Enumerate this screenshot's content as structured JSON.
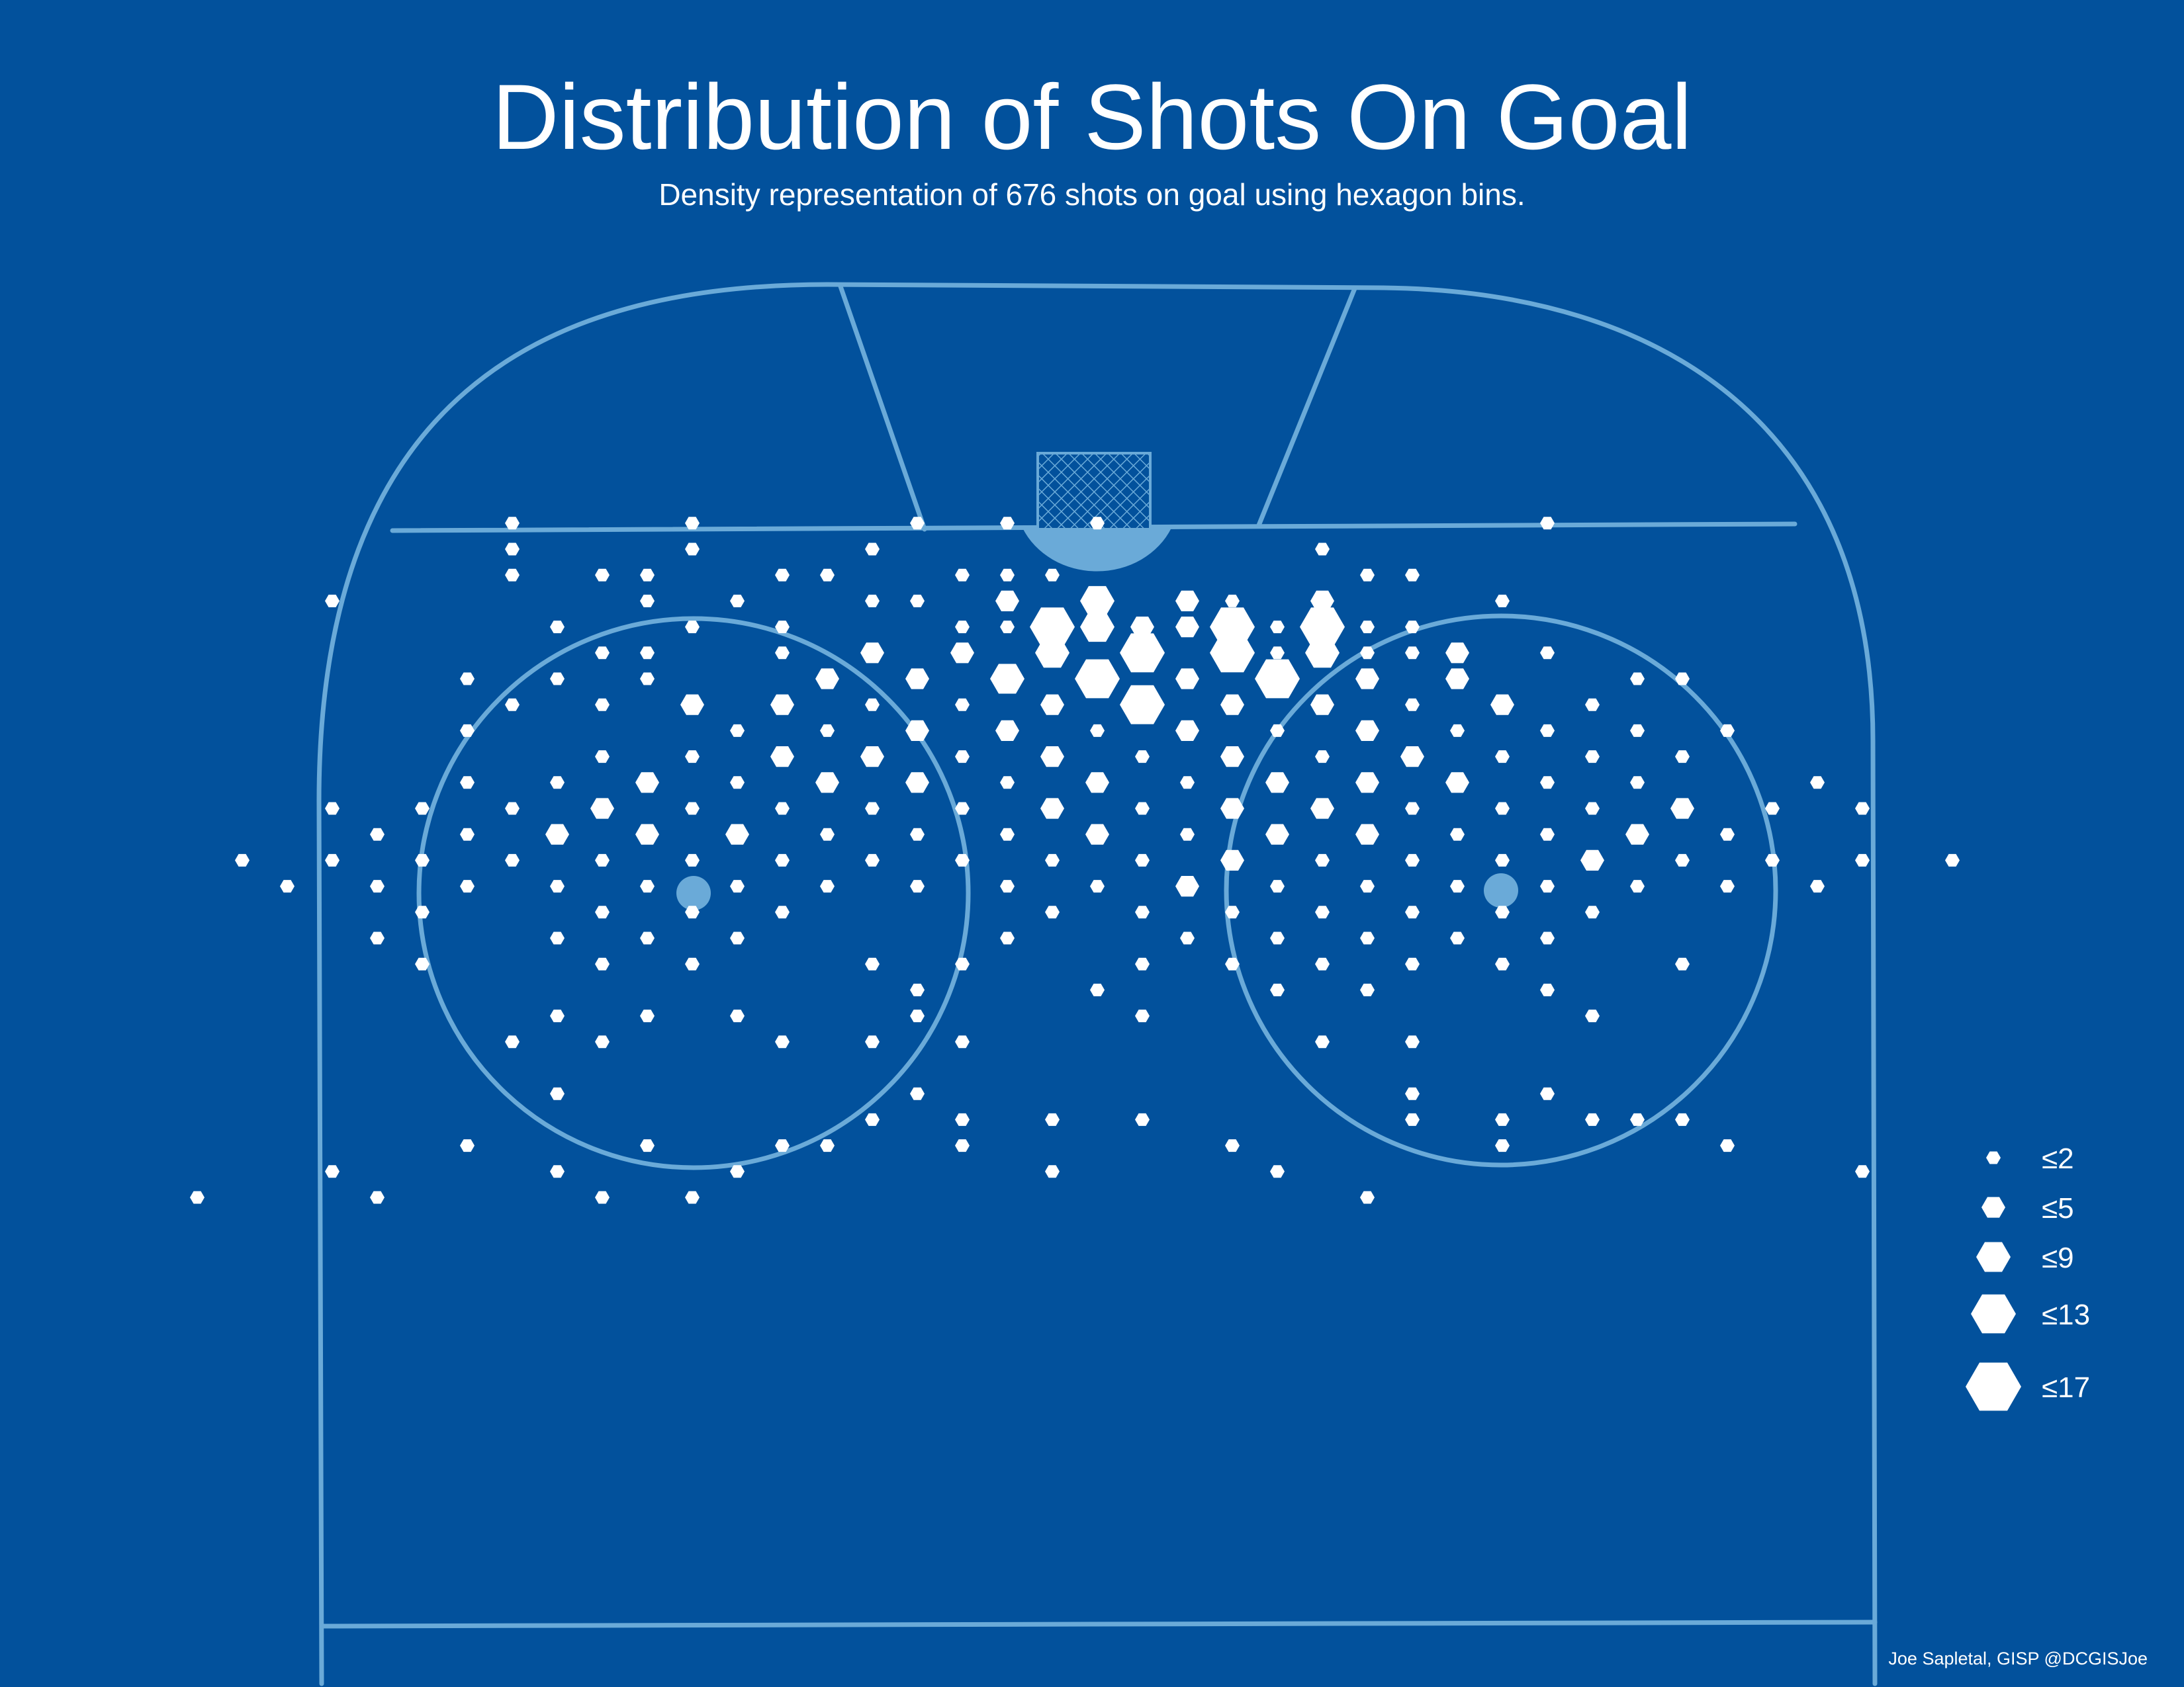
{
  "colors": {
    "background": "#02519c",
    "rink_lines": "#6aaad8",
    "hexagon": "#ffffff",
    "text": "#ffffff"
  },
  "title": "Distribution of Shots On Goal",
  "subtitle": "Density representation of 676 shots on goal using hexagon bins.",
  "credit": "Joe Sapletal, GISP @DCGISJoe",
  "chart_data": {
    "type": "heatmap",
    "title": "Distribution of Shots On Goal",
    "subtitle": "Density representation of 676 shots on goal using hexagon bins.",
    "total_shots": 676,
    "bin_shape": "hexagon",
    "encoding": "hexagon size = shots in bin (class upper bound)",
    "legend": {
      "placement": "right",
      "classes": [
        {
          "label": "≤2",
          "max": 2
        },
        {
          "label": "≤5",
          "max": 5
        },
        {
          "label": "≤9",
          "max": 9
        },
        {
          "label": "≤13",
          "max": 13
        },
        {
          "label": "≤17",
          "max": 17
        }
      ]
    },
    "bins_note": "each bin: [column, row, class max]; columns step half a hex width, rows step one hex row (offset grid), origin at the goal line near the net",
    "bins": [
      [
        -13,
        -1,
        2
      ],
      [
        -9,
        -1,
        2
      ],
      [
        -4,
        -1,
        2
      ],
      [
        -2,
        -1,
        2
      ],
      [
        0,
        -1,
        2
      ],
      [
        10,
        -1,
        2
      ],
      [
        -13,
        0,
        2
      ],
      [
        -9,
        0,
        2
      ],
      [
        -13,
        1,
        2
      ],
      [
        -11,
        1,
        2
      ],
      [
        -10,
        1,
        2
      ],
      [
        -7,
        1,
        2
      ],
      [
        -1,
        1,
        2
      ],
      [
        -5,
        0,
        2
      ],
      [
        -6,
        1,
        2
      ],
      [
        -5,
        2,
        2
      ],
      [
        -4,
        2,
        2
      ],
      [
        -2,
        2,
        5
      ],
      [
        0,
        2,
        9
      ],
      [
        2,
        2,
        5
      ],
      [
        3,
        2,
        2
      ],
      [
        6,
        1,
        2
      ],
      [
        5,
        0,
        2
      ],
      [
        7,
        1,
        2
      ],
      [
        9,
        2,
        2
      ],
      [
        -3,
        1,
        2
      ],
      [
        -2,
        1,
        2
      ],
      [
        -17,
        2,
        2
      ],
      [
        -8,
        2,
        2
      ],
      [
        -10,
        2,
        2
      ],
      [
        -12,
        3,
        2
      ],
      [
        -9,
        3,
        2
      ],
      [
        -7,
        3,
        2
      ],
      [
        -3,
        3,
        2
      ],
      [
        -2,
        3,
        2
      ],
      [
        0,
        3,
        9
      ],
      [
        2,
        3,
        5
      ],
      [
        4,
        3,
        2
      ],
      [
        6,
        3,
        2
      ],
      [
        7,
        3,
        2
      ],
      [
        -11,
        4,
        2
      ],
      [
        -10,
        4,
        2
      ],
      [
        -7,
        4,
        2
      ],
      [
        -5,
        4,
        5
      ],
      [
        -3,
        4,
        5
      ],
      [
        -1,
        4,
        9
      ],
      [
        1,
        4,
        13
      ],
      [
        3,
        4,
        13
      ],
      [
        5,
        4,
        9
      ],
      [
        7,
        4,
        2
      ],
      [
        -1,
        3,
        13
      ],
      [
        1,
        3,
        5
      ],
      [
        3,
        3,
        13
      ],
      [
        5,
        3,
        13
      ],
      [
        4,
        4,
        2
      ],
      [
        5,
        2,
        5
      ],
      [
        8,
        4,
        5
      ],
      [
        6,
        4,
        2
      ],
      [
        10,
        4,
        2
      ],
      [
        -14,
        5,
        2
      ],
      [
        -12,
        5,
        2
      ],
      [
        -10,
        5,
        2
      ],
      [
        -6,
        5,
        5
      ],
      [
        -4,
        5,
        5
      ],
      [
        -2,
        5,
        9
      ],
      [
        0,
        5,
        13
      ],
      [
        2,
        5,
        5
      ],
      [
        4,
        5,
        13
      ],
      [
        6,
        5,
        5
      ],
      [
        8,
        5,
        5
      ],
      [
        12,
        5,
        2
      ],
      [
        13,
        5,
        2
      ],
      [
        -13,
        6,
        2
      ],
      [
        -11,
        6,
        2
      ],
      [
        -9,
        6,
        5
      ],
      [
        -7,
        6,
        5
      ],
      [
        -5,
        6,
        2
      ],
      [
        -3,
        6,
        2
      ],
      [
        -1,
        6,
        5
      ],
      [
        1,
        6,
        13
      ],
      [
        3,
        6,
        5
      ],
      [
        5,
        6,
        5
      ],
      [
        7,
        6,
        2
      ],
      [
        9,
        6,
        5
      ],
      [
        11,
        6,
        2
      ],
      [
        -14,
        7,
        2
      ],
      [
        -8,
        7,
        2
      ],
      [
        -6,
        7,
        2
      ],
      [
        -4,
        7,
        5
      ],
      [
        -2,
        7,
        5
      ],
      [
        0,
        7,
        2
      ],
      [
        2,
        7,
        5
      ],
      [
        4,
        7,
        2
      ],
      [
        6,
        7,
        5
      ],
      [
        8,
        7,
        2
      ],
      [
        10,
        7,
        2
      ],
      [
        12,
        7,
        2
      ],
      [
        14,
        7,
        2
      ],
      [
        -11,
        8,
        2
      ],
      [
        -9,
        8,
        2
      ],
      [
        -7,
        8,
        5
      ],
      [
        -5,
        8,
        5
      ],
      [
        -3,
        8,
        2
      ],
      [
        -1,
        8,
        5
      ],
      [
        1,
        8,
        2
      ],
      [
        3,
        8,
        5
      ],
      [
        5,
        8,
        2
      ],
      [
        7,
        8,
        5
      ],
      [
        9,
        8,
        2
      ],
      [
        11,
        8,
        2
      ],
      [
        13,
        8,
        2
      ],
      [
        -14,
        9,
        2
      ],
      [
        -12,
        9,
        2
      ],
      [
        -10,
        9,
        5
      ],
      [
        -8,
        9,
        2
      ],
      [
        -6,
        9,
        5
      ],
      [
        -4,
        9,
        5
      ],
      [
        -2,
        9,
        2
      ],
      [
        0,
        9,
        5
      ],
      [
        2,
        9,
        2
      ],
      [
        4,
        9,
        5
      ],
      [
        6,
        9,
        5
      ],
      [
        8,
        9,
        5
      ],
      [
        10,
        9,
        2
      ],
      [
        12,
        9,
        2
      ],
      [
        16,
        9,
        2
      ],
      [
        -17,
        10,
        2
      ],
      [
        -15,
        10,
        2
      ],
      [
        -13,
        10,
        2
      ],
      [
        -11,
        10,
        5
      ],
      [
        -9,
        10,
        2
      ],
      [
        -7,
        10,
        2
      ],
      [
        -5,
        10,
        2
      ],
      [
        -3,
        10,
        2
      ],
      [
        -1,
        10,
        5
      ],
      [
        1,
        10,
        2
      ],
      [
        3,
        10,
        5
      ],
      [
        5,
        10,
        5
      ],
      [
        7,
        10,
        2
      ],
      [
        9,
        10,
        2
      ],
      [
        11,
        10,
        2
      ],
      [
        13,
        10,
        5
      ],
      [
        15,
        10,
        2
      ],
      [
        17,
        10,
        2
      ],
      [
        -16,
        11,
        2
      ],
      [
        -14,
        11,
        2
      ],
      [
        -12,
        11,
        5
      ],
      [
        -10,
        11,
        5
      ],
      [
        -8,
        11,
        5
      ],
      [
        -6,
        11,
        2
      ],
      [
        -4,
        11,
        2
      ],
      [
        -2,
        11,
        2
      ],
      [
        0,
        11,
        5
      ],
      [
        2,
        11,
        2
      ],
      [
        4,
        11,
        5
      ],
      [
        6,
        11,
        5
      ],
      [
        8,
        11,
        2
      ],
      [
        10,
        11,
        2
      ],
      [
        12,
        11,
        5
      ],
      [
        14,
        11,
        2
      ],
      [
        -19,
        12,
        2
      ],
      [
        -17,
        12,
        2
      ],
      [
        -15,
        12,
        2
      ],
      [
        -13,
        12,
        2
      ],
      [
        -11,
        12,
        2
      ],
      [
        -9,
        12,
        2
      ],
      [
        -7,
        12,
        2
      ],
      [
        -5,
        12,
        2
      ],
      [
        -3,
        12,
        2
      ],
      [
        -1,
        12,
        2
      ],
      [
        1,
        12,
        2
      ],
      [
        3,
        12,
        5
      ],
      [
        5,
        12,
        2
      ],
      [
        7,
        12,
        2
      ],
      [
        9,
        12,
        2
      ],
      [
        11,
        12,
        5
      ],
      [
        13,
        12,
        2
      ],
      [
        15,
        12,
        2
      ],
      [
        17,
        12,
        2
      ],
      [
        19,
        12,
        2
      ],
      [
        -18,
        13,
        2
      ],
      [
        -16,
        13,
        2
      ],
      [
        -14,
        13,
        2
      ],
      [
        -12,
        13,
        2
      ],
      [
        -10,
        13,
        2
      ],
      [
        -8,
        13,
        2
      ],
      [
        -6,
        13,
        2
      ],
      [
        -4,
        13,
        2
      ],
      [
        -2,
        13,
        2
      ],
      [
        0,
        13,
        2
      ],
      [
        2,
        13,
        5
      ],
      [
        4,
        13,
        2
      ],
      [
        6,
        13,
        2
      ],
      [
        8,
        13,
        2
      ],
      [
        10,
        13,
        2
      ],
      [
        12,
        13,
        2
      ],
      [
        14,
        13,
        2
      ],
      [
        16,
        13,
        2
      ],
      [
        -15,
        14,
        2
      ],
      [
        -11,
        14,
        2
      ],
      [
        -9,
        14,
        2
      ],
      [
        -7,
        14,
        2
      ],
      [
        -1,
        14,
        2
      ],
      [
        1,
        14,
        2
      ],
      [
        3,
        14,
        2
      ],
      [
        5,
        14,
        2
      ],
      [
        7,
        14,
        2
      ],
      [
        9,
        14,
        2
      ],
      [
        11,
        14,
        2
      ],
      [
        -16,
        15,
        2
      ],
      [
        -12,
        15,
        2
      ],
      [
        -10,
        15,
        2
      ],
      [
        -8,
        15,
        2
      ],
      [
        -2,
        15,
        2
      ],
      [
        2,
        15,
        2
      ],
      [
        4,
        15,
        2
      ],
      [
        6,
        15,
        2
      ],
      [
        8,
        15,
        2
      ],
      [
        10,
        15,
        2
      ],
      [
        -15,
        16,
        2
      ],
      [
        -11,
        16,
        2
      ],
      [
        -9,
        16,
        2
      ],
      [
        -5,
        16,
        2
      ],
      [
        -3,
        16,
        2
      ],
      [
        1,
        16,
        2
      ],
      [
        3,
        16,
        2
      ],
      [
        5,
        16,
        2
      ],
      [
        7,
        16,
        2
      ],
      [
        9,
        16,
        2
      ],
      [
        13,
        16,
        2
      ],
      [
        -4,
        17,
        2
      ],
      [
        0,
        17,
        2
      ],
      [
        4,
        17,
        2
      ],
      [
        6,
        17,
        2
      ],
      [
        10,
        17,
        2
      ],
      [
        -12,
        18,
        2
      ],
      [
        -10,
        18,
        2
      ],
      [
        -8,
        18,
        2
      ],
      [
        -4,
        18,
        2
      ],
      [
        1,
        18,
        2
      ],
      [
        11,
        18,
        2
      ],
      [
        -13,
        19,
        2
      ],
      [
        -11,
        19,
        2
      ],
      [
        -7,
        19,
        2
      ],
      [
        -5,
        19,
        2
      ],
      [
        -3,
        19,
        2
      ],
      [
        5,
        19,
        2
      ],
      [
        7,
        19,
        2
      ],
      [
        -4,
        21,
        2
      ],
      [
        7,
        21,
        2
      ],
      [
        10,
        21,
        2
      ],
      [
        -14,
        23,
        2
      ],
      [
        -10,
        23,
        2
      ],
      [
        -6,
        23,
        2
      ],
      [
        -5,
        22,
        2
      ],
      [
        -3,
        22,
        2
      ],
      [
        -1,
        22,
        2
      ],
      [
        1,
        22,
        2
      ],
      [
        7,
        22,
        2
      ],
      [
        12,
        22,
        2
      ],
      [
        13,
        22,
        2
      ],
      [
        9,
        22,
        2
      ],
      [
        11,
        22,
        2
      ],
      [
        -3,
        23,
        2
      ],
      [
        -7,
        23,
        2
      ],
      [
        -12,
        24,
        2
      ],
      [
        -8,
        24,
        2
      ],
      [
        4,
        24,
        2
      ],
      [
        -12,
        21,
        2
      ],
      [
        -16,
        25,
        2
      ],
      [
        6,
        25,
        2
      ],
      [
        -1,
        24,
        2
      ],
      [
        17,
        24,
        2
      ],
      [
        9,
        23,
        2
      ],
      [
        14,
        23,
        2
      ],
      [
        -20,
        25,
        2
      ],
      [
        -11,
        25,
        2
      ],
      [
        -9,
        25,
        2
      ],
      [
        -17,
        24,
        2
      ],
      [
        3,
        23,
        2
      ]
    ]
  }
}
